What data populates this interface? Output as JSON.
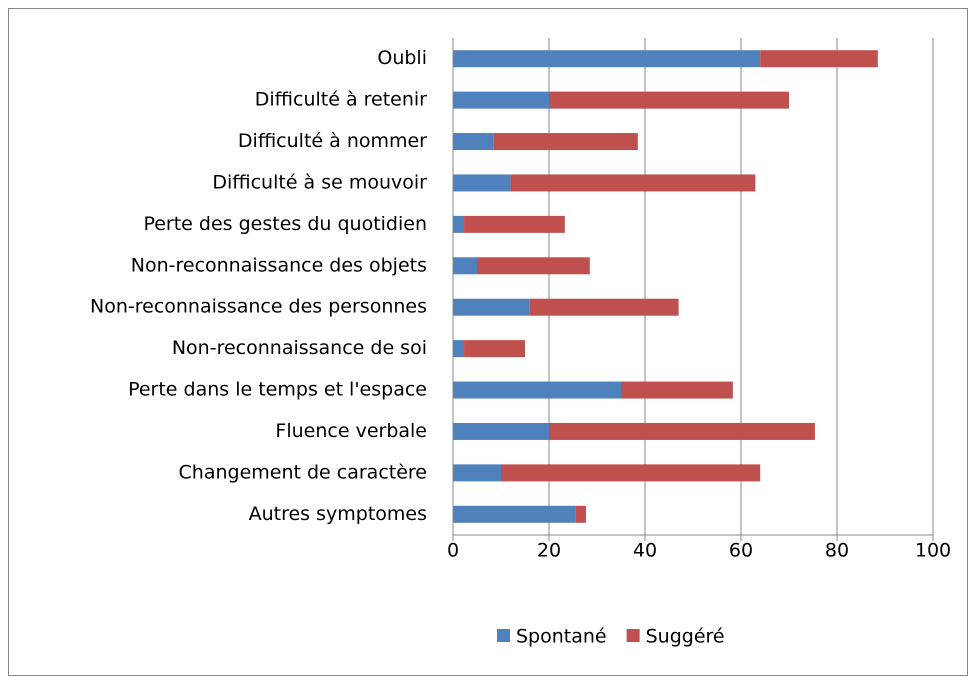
{
  "chart_data": {
    "type": "bar",
    "orientation": "horizontal",
    "stacked": true,
    "categories": [
      "Oubli",
      "Difficulté à retenir",
      "Difficulté à nommer",
      "Difficulté à se mouvoir",
      "Perte des gestes du quotidien",
      "Non-reconnaissance des objets",
      "Non-reconnaissance des personnes",
      "Non-reconnaissance de soi",
      "Perte dans le temps et l'espace",
      "Fluence verbale",
      "Changement de caractère",
      "Autres symptomes"
    ],
    "series": [
      {
        "name": "Spontané",
        "color": "#4f81bd",
        "values": [
          64,
          20,
          8.5,
          12,
          2.3,
          5,
          16,
          2.3,
          35,
          20,
          10,
          25.6
        ]
      },
      {
        "name": "Suggéré",
        "color": "#c0504d",
        "values": [
          24.5,
          50,
          30,
          51,
          21,
          23.5,
          31,
          12.7,
          23.3,
          55.4,
          54,
          2.1
        ]
      }
    ],
    "xlim": [
      0,
      100
    ],
    "xticks": [
      0,
      20,
      40,
      60,
      80,
      100
    ],
    "grid": true,
    "legend": "bottom"
  }
}
